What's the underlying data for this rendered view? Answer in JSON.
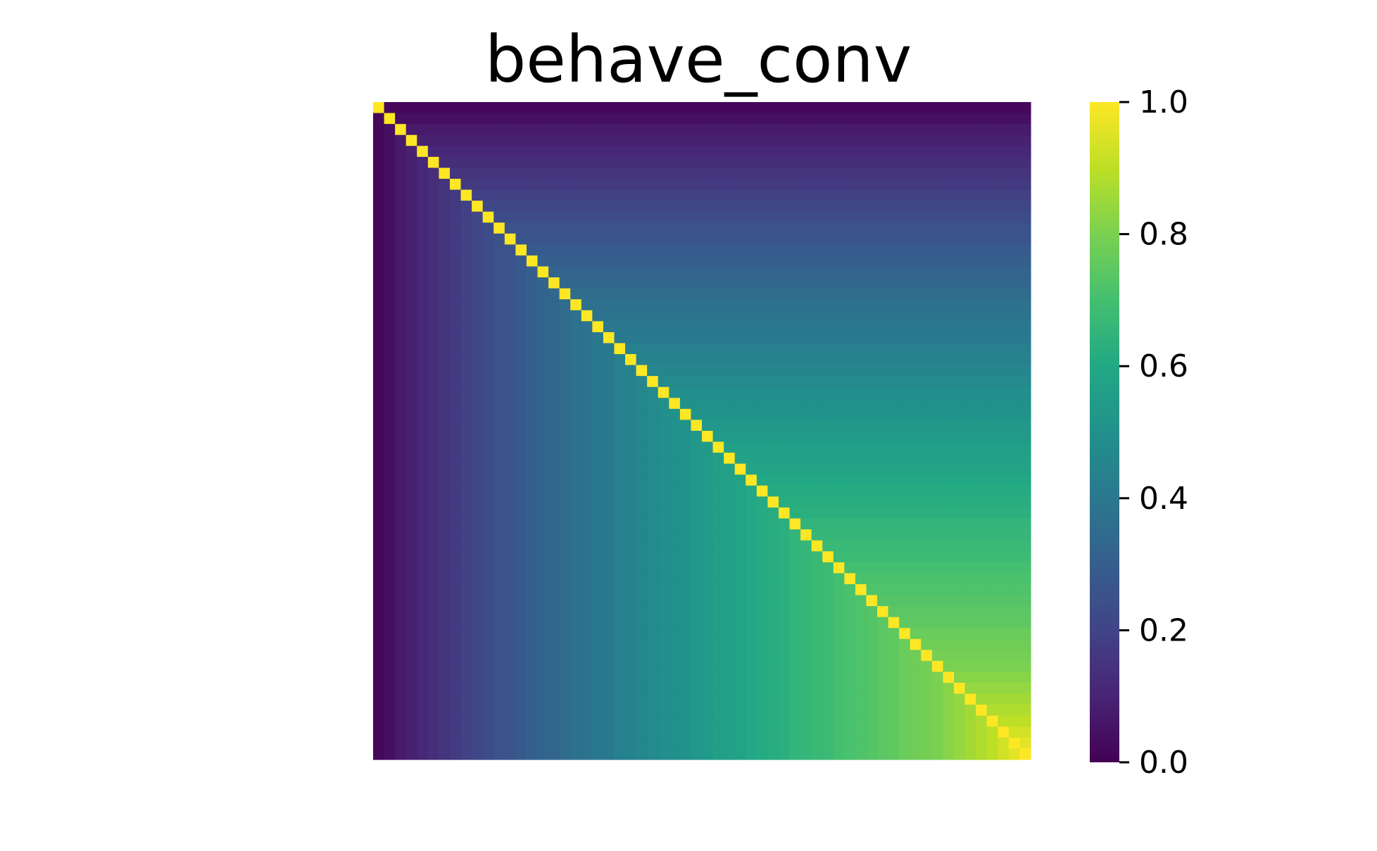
{
  "chart_data": {
    "type": "heatmap",
    "title": "behave_conv",
    "xlabel": "",
    "ylabel": "",
    "colormap": "viridis",
    "n": 60,
    "matrix_rule": "lower-triangular values: cell(i,j) = column_level[min(i,j)] for i != j, diagonal = 1.0",
    "column_level": [
      0.02,
      0.04,
      0.07,
      0.09,
      0.11,
      0.13,
      0.15,
      0.17,
      0.19,
      0.21,
      0.23,
      0.25,
      0.26,
      0.28,
      0.3,
      0.32,
      0.33,
      0.35,
      0.37,
      0.38,
      0.4,
      0.41,
      0.43,
      0.44,
      0.46,
      0.47,
      0.49,
      0.5,
      0.51,
      0.53,
      0.54,
      0.56,
      0.57,
      0.58,
      0.6,
      0.61,
      0.62,
      0.63,
      0.65,
      0.66,
      0.67,
      0.68,
      0.7,
      0.71,
      0.72,
      0.73,
      0.74,
      0.75,
      0.77,
      0.78,
      0.79,
      0.8,
      0.82,
      0.84,
      0.86,
      0.88,
      0.9,
      0.93,
      0.96,
      0.99
    ],
    "diagonal_value": 1.0,
    "colorbar": {
      "range": [
        0.0,
        1.0
      ],
      "ticks": [
        "0.0",
        "0.2",
        "0.4",
        "0.6",
        "0.8",
        "1.0"
      ]
    },
    "colors": {
      "viridis_0": "#440154",
      "viridis_1": "#fde725"
    }
  }
}
